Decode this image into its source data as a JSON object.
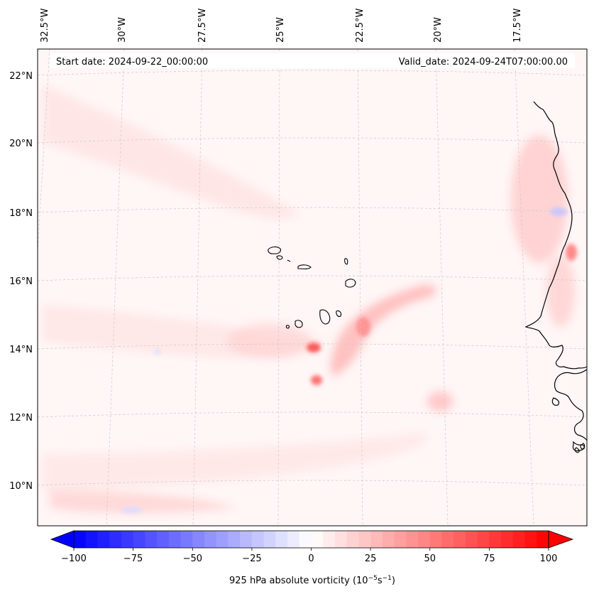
{
  "map": {
    "start_label": "Start date: 2024-09-22_00:00:00",
    "valid_label": "Valid_date: 2024-09-24T07:00:00.00",
    "lon_labels": [
      "32.5°W",
      "30°W",
      "27.5°W",
      "25°W",
      "22.5°W",
      "20°W",
      "17.5°W"
    ],
    "lat_labels": [
      "22°N",
      "20°N",
      "18°N",
      "16°N",
      "14°N",
      "12°N",
      "10°N"
    ]
  },
  "colorbar": {
    "ticks": [
      "−100",
      "−75",
      "−50",
      "−25",
      "0",
      "25",
      "50",
      "75",
      "100"
    ],
    "label_main": "925 hPa absolute vorticity (10",
    "label_exp1": "−5",
    "label_mid": "s",
    "label_exp2": "−1",
    "label_end": ")",
    "min_value": -100,
    "max_value": 100,
    "negative_color": "#0000ff",
    "positive_color": "#ff0000"
  },
  "colors": {
    "background_tint": "#fff5f5",
    "coastline": "#000000",
    "gridline": "#c8c8c8"
  }
}
